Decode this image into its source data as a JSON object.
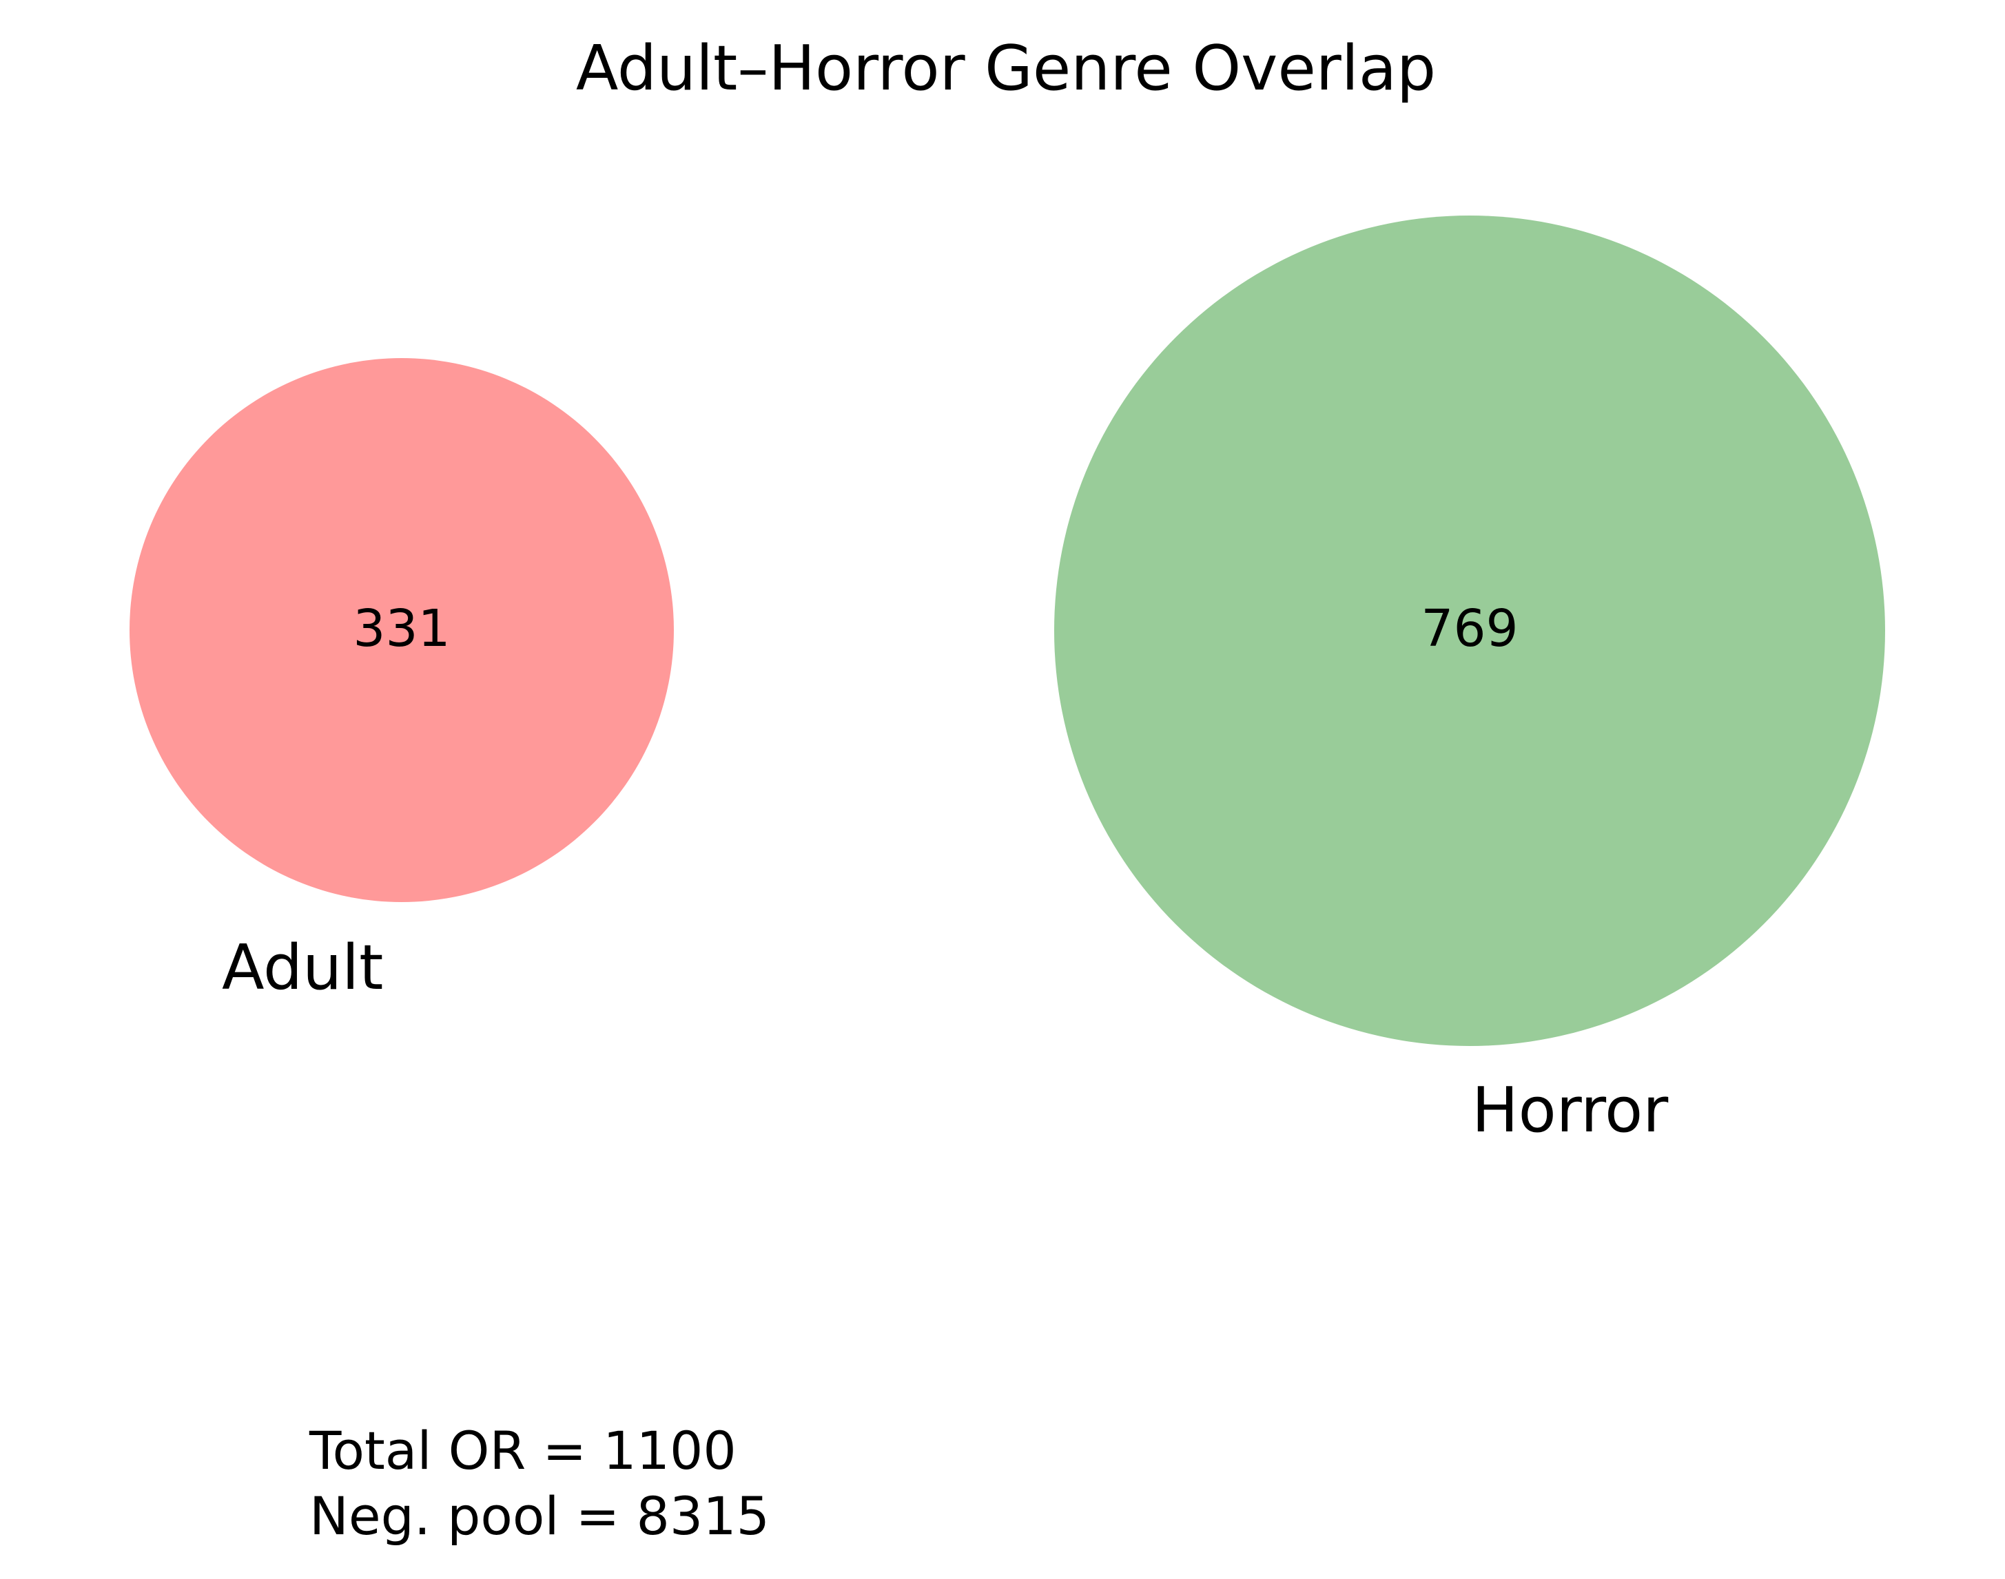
{
  "title": "Adult–Horror Genre Overlap",
  "chart_data": {
    "type": "venn",
    "sets": [
      {
        "label": "Adult",
        "count": "331",
        "color": "#ff9999"
      },
      {
        "label": "Horror",
        "count": "769",
        "color": "#99cc99"
      }
    ],
    "intersection": 0
  },
  "annotation": {
    "total_line": "Total OR = 1100",
    "pool_line": "Neg. pool = 8315"
  }
}
